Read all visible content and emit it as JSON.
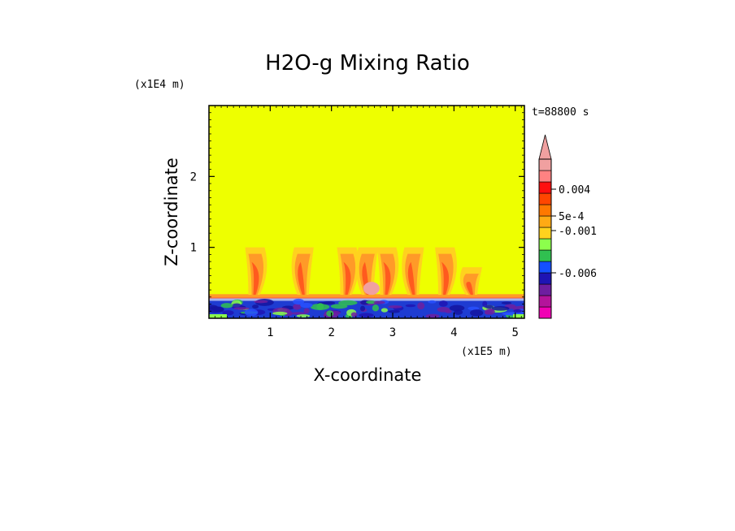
{
  "chart_data": {
    "type": "heatmap",
    "title": "H2O-g Mixing Ratio",
    "xlabel": "X-coordinate",
    "ylabel": "Z-coordinate",
    "x_scale_label": "(x1E5 m)",
    "y_scale_label": "(x1E4 m)",
    "time_label": "t=88800 s",
    "xlim": [
      0,
      5.15
    ],
    "ylim": [
      0,
      3.0
    ],
    "x_ticks": [
      1,
      2,
      3,
      4,
      5
    ],
    "x_tick_labels": [
      "1",
      "2",
      "3",
      "4",
      "5"
    ],
    "y_ticks": [
      1,
      2
    ],
    "y_tick_labels": [
      "1",
      "2"
    ],
    "background_color": "#eeff00",
    "colorbar": {
      "colors": [
        "#f000b4",
        "#b4149b",
        "#6e1ea0",
        "#1e14b4",
        "#1450ff",
        "#30c050",
        "#8cff4c",
        "#ffd21e",
        "#ffaa14",
        "#ff7800",
        "#ff4600",
        "#ff0f0f",
        "#ff8282",
        "#f0a0a0"
      ],
      "tick_labels": [
        "0.004",
        "5e-4",
        "-0.001",
        "-0.006"
      ]
    },
    "plumes_x": [
      0.75,
      1.55,
      2.25,
      2.6,
      2.9,
      3.35,
      3.85,
      4.3
    ]
  }
}
